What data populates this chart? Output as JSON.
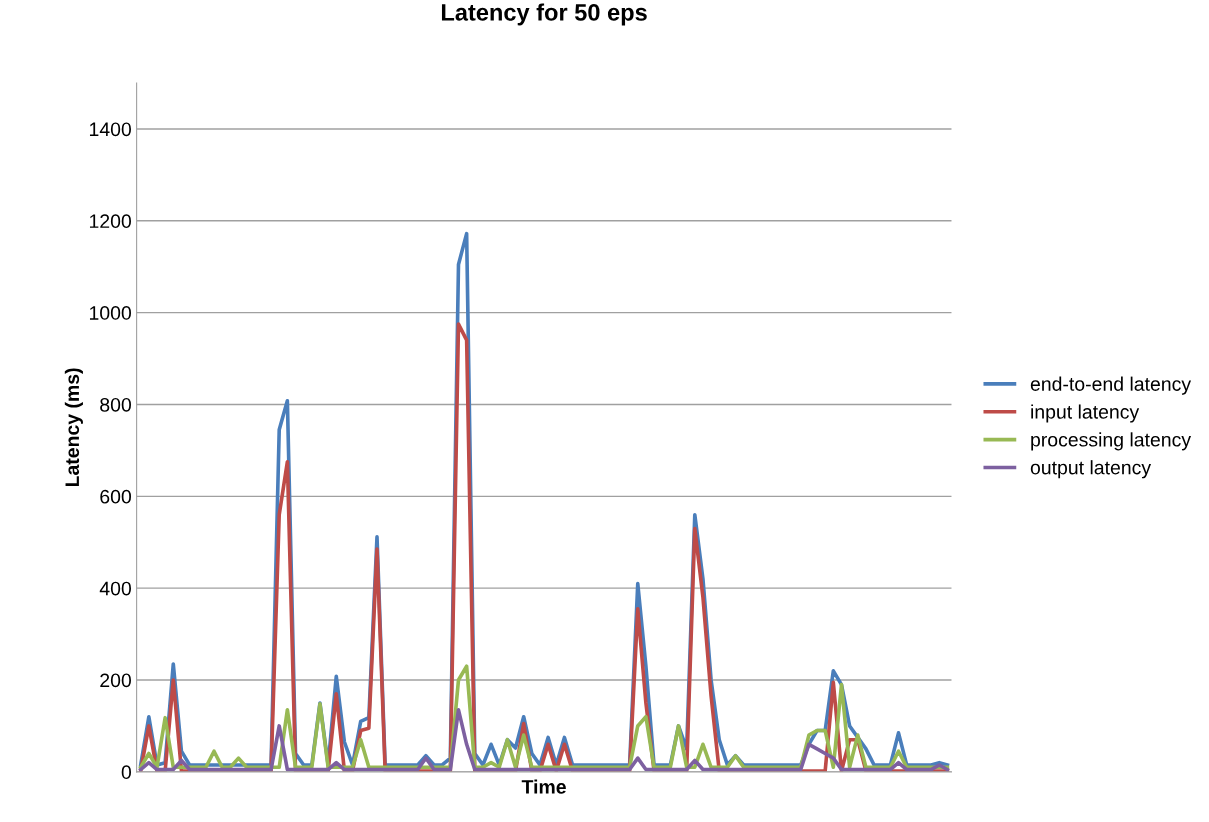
{
  "chart_data": {
    "type": "line",
    "title": "Latency for 50 eps",
    "xlabel": "Time",
    "ylabel": "Latency (ms)",
    "categories": [
      null,
      null,
      null,
      null,
      null,
      null,
      null,
      null,
      null,
      null,
      null,
      null,
      null,
      null,
      null,
      null,
      null,
      null,
      null,
      null,
      null,
      null,
      null,
      null,
      null,
      null,
      null,
      null,
      null,
      null,
      null,
      null,
      null,
      null,
      null,
      null,
      null,
      null,
      null,
      null,
      null,
      null,
      null,
      null,
      null,
      null,
      null,
      null,
      null,
      null,
      null,
      null,
      null,
      null,
      null,
      null,
      null,
      null,
      null,
      null,
      null,
      null,
      null,
      null,
      null,
      null,
      null,
      null,
      null,
      null,
      null,
      null,
      null,
      null,
      null,
      null,
      null,
      null,
      null,
      null,
      null,
      null,
      null,
      null,
      null,
      null,
      null,
      null,
      null,
      null,
      null,
      null,
      null,
      null,
      null,
      null,
      null,
      null,
      null,
      null
    ],
    "series": [
      {
        "name": "end-to-end latency",
        "color": "#4a7ebb",
        "values": [
          15,
          120,
          15,
          20,
          235,
          45,
          15,
          15,
          15,
          15,
          15,
          15,
          15,
          15,
          15,
          15,
          15,
          745,
          808,
          40,
          15,
          15,
          150,
          15,
          208,
          65,
          15,
          110,
          118,
          512,
          15,
          15,
          15,
          15,
          15,
          35,
          15,
          15,
          30,
          1105,
          1172,
          40,
          15,
          60,
          15,
          70,
          52,
          120,
          40,
          15,
          75,
          15,
          75,
          15,
          15,
          15,
          15,
          15,
          15,
          15,
          15,
          410,
          230,
          15,
          15,
          15,
          100,
          50,
          560,
          420,
          200,
          70,
          15,
          35,
          15,
          15,
          15,
          15,
          15,
          15,
          15,
          15,
          60,
          90,
          90,
          220,
          190,
          100,
          75,
          50,
          15,
          15,
          15,
          85,
          15,
          15,
          15,
          15,
          20,
          15
        ]
      },
      {
        "name": "input latency",
        "color": "#be4b48",
        "values": [
          2,
          100,
          2,
          2,
          200,
          2,
          2,
          2,
          2,
          2,
          2,
          2,
          2,
          2,
          2,
          2,
          2,
          560,
          675,
          2,
          2,
          2,
          2,
          2,
          170,
          2,
          2,
          90,
          95,
          485,
          2,
          2,
          2,
          2,
          2,
          2,
          2,
          2,
          2,
          975,
          940,
          2,
          2,
          2,
          2,
          2,
          2,
          105,
          2,
          2,
          60,
          2,
          60,
          2,
          2,
          2,
          2,
          2,
          2,
          2,
          2,
          355,
          150,
          2,
          2,
          2,
          2,
          2,
          530,
          380,
          165,
          2,
          2,
          2,
          2,
          2,
          2,
          2,
          2,
          2,
          2,
          2,
          2,
          2,
          2,
          195,
          2,
          70,
          70,
          2,
          2,
          2,
          2,
          2,
          2,
          2,
          2,
          2,
          2,
          2
        ]
      },
      {
        "name": "processing latency",
        "color": "#98b954",
        "values": [
          10,
          40,
          10,
          118,
          10,
          10,
          10,
          10,
          10,
          45,
          10,
          10,
          30,
          10,
          10,
          10,
          10,
          10,
          135,
          10,
          10,
          10,
          148,
          10,
          10,
          10,
          10,
          70,
          10,
          10,
          10,
          10,
          10,
          10,
          10,
          10,
          10,
          10,
          10,
          200,
          230,
          10,
          10,
          20,
          10,
          70,
          10,
          80,
          10,
          10,
          10,
          10,
          10,
          10,
          10,
          10,
          10,
          10,
          10,
          10,
          10,
          100,
          120,
          10,
          10,
          10,
          100,
          10,
          10,
          60,
          10,
          10,
          10,
          35,
          10,
          10,
          10,
          10,
          10,
          10,
          10,
          10,
          80,
          90,
          90,
          10,
          190,
          10,
          80,
          10,
          10,
          10,
          10,
          45,
          10,
          10,
          10,
          10,
          10,
          10
        ]
      },
      {
        "name": "output latency",
        "color": "#7d60a0",
        "values": [
          5,
          20,
          5,
          5,
          5,
          25,
          5,
          5,
          5,
          5,
          5,
          5,
          5,
          5,
          5,
          5,
          5,
          100,
          5,
          5,
          5,
          5,
          5,
          5,
          20,
          5,
          5,
          5,
          5,
          5,
          5,
          5,
          5,
          5,
          5,
          30,
          5,
          5,
          5,
          135,
          60,
          5,
          5,
          5,
          5,
          5,
          5,
          5,
          5,
          5,
          5,
          5,
          5,
          5,
          5,
          5,
          5,
          5,
          5,
          5,
          5,
          30,
          5,
          5,
          5,
          5,
          5,
          5,
          25,
          5,
          5,
          5,
          5,
          5,
          5,
          5,
          5,
          5,
          5,
          5,
          5,
          5,
          60,
          50,
          40,
          30,
          5,
          5,
          5,
          5,
          5,
          5,
          5,
          20,
          5,
          5,
          5,
          5,
          15,
          5
        ]
      }
    ],
    "ylim": [
      0,
      1500
    ],
    "yticks": [
      0,
      200,
      400,
      600,
      800,
      1000,
      1200,
      1400
    ],
    "grid": "y",
    "legend": "right",
    "line_style": "solid",
    "marker": "none"
  }
}
